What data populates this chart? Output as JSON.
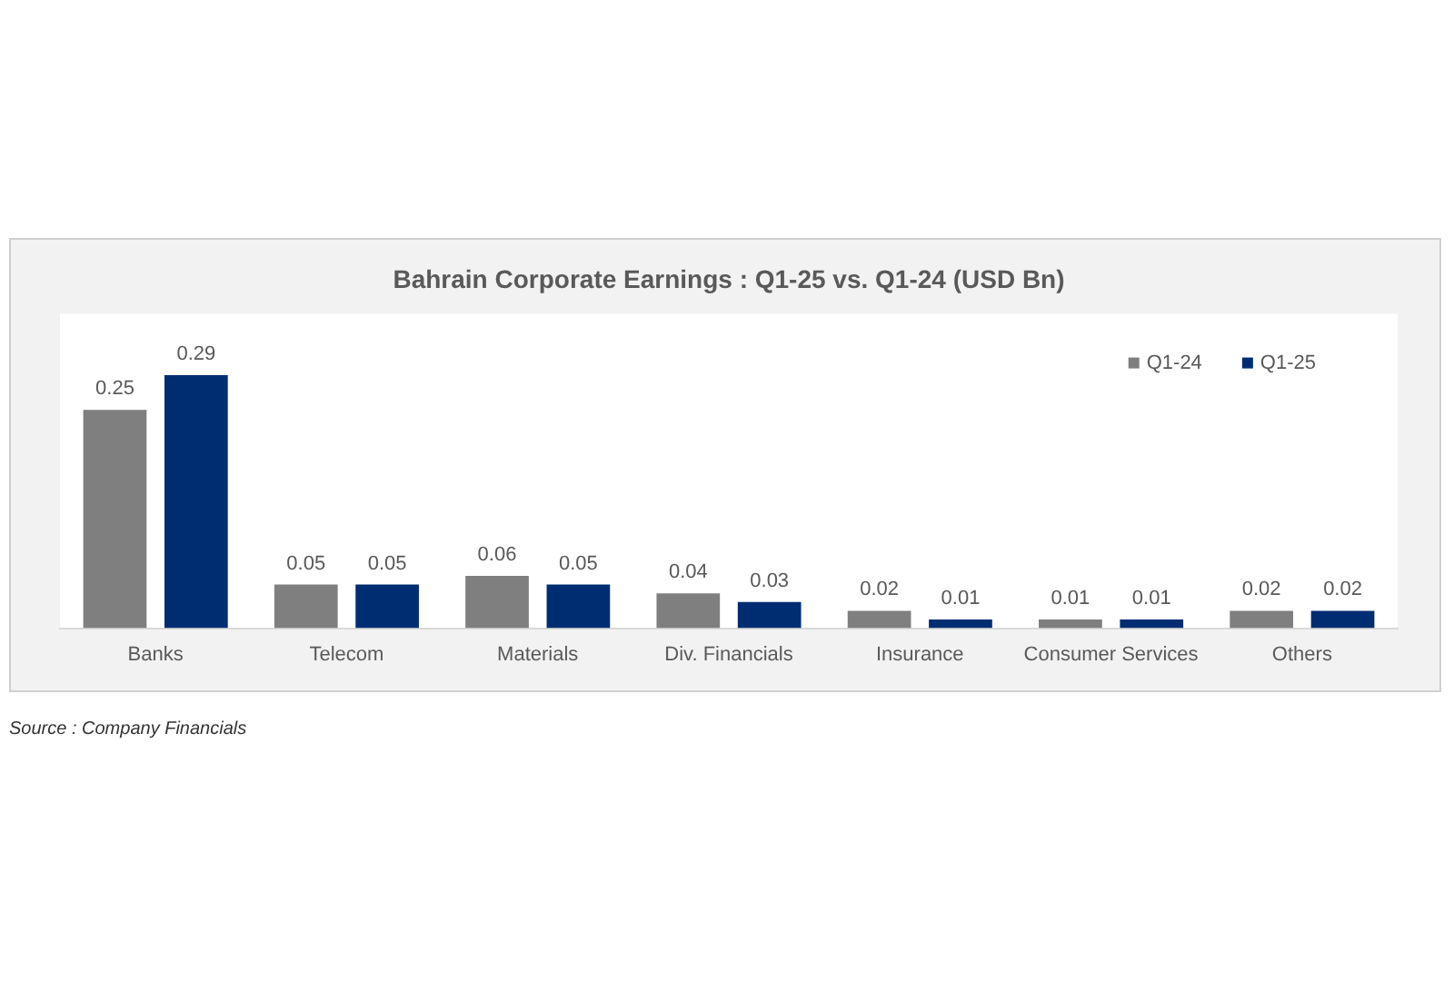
{
  "chart_data": {
    "type": "bar",
    "title": "Bahrain Corporate Earnings : Q1-25 vs. Q1-24 (USD Bn)",
    "categories": [
      "Banks",
      "Telecom",
      "Materials",
      "Div. Financials",
      "Insurance",
      "Consumer Services",
      "Others"
    ],
    "series": [
      {
        "name": "Q1-24",
        "color": "#7f7f7f",
        "values": [
          0.25,
          0.05,
          0.06,
          0.04,
          0.02,
          0.01,
          0.02
        ]
      },
      {
        "name": "Q1-25",
        "color": "#002d72",
        "values": [
          0.29,
          0.05,
          0.05,
          0.03,
          0.01,
          0.01,
          0.02
        ]
      }
    ],
    "ylim": [
      0,
      0.36
    ],
    "data_labels": true,
    "legend": "top right",
    "tick_labels": "x",
    "annotations": [
      "Source : Company Financials"
    ]
  }
}
